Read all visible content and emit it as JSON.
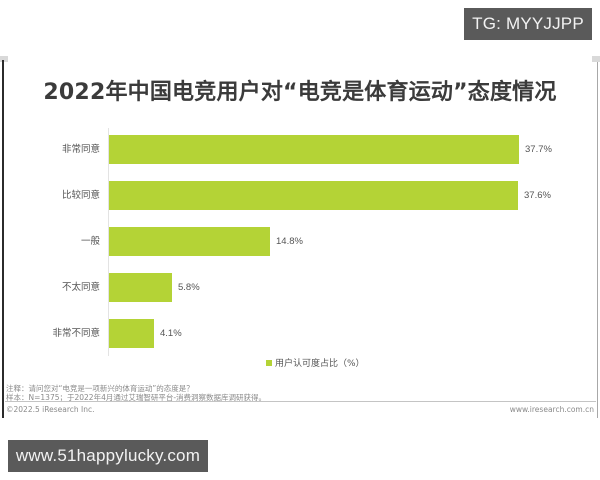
{
  "overlays": {
    "tg_tag": "TG: MYYJJPP",
    "site_tag": "www.51happylucky.com"
  },
  "chart": {
    "title": "2022年中国电竞用户对“电竞是体育运动”态度情况",
    "legend": "用户认可度占比（%）",
    "bars": [
      {
        "label": "非常同意",
        "value": 37.7,
        "display": "37.7%"
      },
      {
        "label": "比较同意",
        "value": 37.6,
        "display": "37.6%"
      },
      {
        "label": "一般",
        "value": 14.8,
        "display": "14.8%"
      },
      {
        "label": "不太同意",
        "value": 5.8,
        "display": "5.8%"
      },
      {
        "label": "非常不同意",
        "value": 4.1,
        "display": "4.1%"
      }
    ],
    "bar_color": "#b4d336"
  },
  "footer": {
    "note": "注释：请问您对“电竞是一项新兴的体育运动”的态度是？",
    "sample": "样本：N=1375；于2022年4月通过艾瑞智研平台-消费洞察数据库调研获得。",
    "copyright": "©2022.5 iResearch Inc.",
    "website": "www.iresearch.com.cn"
  },
  "chart_data": {
    "type": "bar",
    "orientation": "horizontal",
    "title": "2022年中国电竞用户对“电竞是体育运动”态度情况",
    "categories": [
      "非常同意",
      "比较同意",
      "一般",
      "不太同意",
      "非常不同意"
    ],
    "values": [
      37.7,
      37.6,
      14.8,
      5.8,
      4.1
    ],
    "series": [
      {
        "name": "用户认可度占比（%）",
        "values": [
          37.7,
          37.6,
          14.8,
          5.8,
          4.1
        ]
      }
    ],
    "xlabel": "",
    "ylabel": "",
    "unit": "%",
    "data_labels": [
      "37.7%",
      "37.6%",
      "14.8%",
      "5.8%",
      "4.1%"
    ],
    "legend_position": "bottom",
    "grid": false,
    "xlim": [
      0,
      40
    ]
  }
}
